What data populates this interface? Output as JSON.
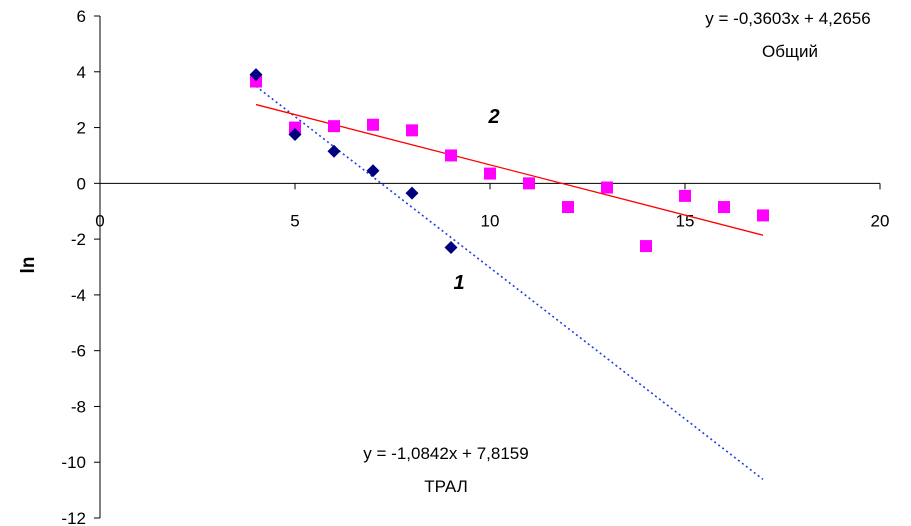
{
  "chart_data": {
    "type": "scatter",
    "title": "",
    "xlabel": "",
    "ylabel": "ln",
    "xlim": [
      0,
      20
    ],
    "ylim": [
      -12,
      6
    ],
    "x_ticks": [
      0,
      5,
      10,
      15,
      20
    ],
    "y_ticks": [
      6,
      4,
      2,
      0,
      -2,
      -4,
      -6,
      -8,
      -10,
      -12
    ],
    "grid": false,
    "series": [
      {
        "name": "ТРАЛ",
        "marker": "diamond",
        "color": "#000080",
        "x": [
          4,
          5,
          6,
          7,
          8,
          9
        ],
        "y": [
          3.9,
          1.75,
          1.15,
          0.45,
          -0.35,
          -2.3
        ],
        "trendline": {
          "slope": -1.0842,
          "intercept": 7.8159,
          "x_range": [
            4,
            17
          ],
          "color": "#1f3fe0",
          "style": "dotted"
        },
        "equation": "y = -1,0842x + 7,8159",
        "label": "ТРАЛ",
        "curve_number": "1"
      },
      {
        "name": "Общий",
        "marker": "square",
        "color": "#ff00ff",
        "x": [
          4,
          5,
          6,
          7,
          8,
          9,
          10,
          11,
          12,
          13,
          14,
          15,
          16,
          17
        ],
        "y": [
          3.65,
          2.0,
          2.05,
          2.1,
          1.9,
          1.0,
          0.35,
          0.0,
          -0.85,
          -0.15,
          -2.25,
          -0.45,
          -0.85,
          -1.15
        ],
        "trendline": {
          "slope": -0.3603,
          "intercept": 4.2656,
          "x_range": [
            4,
            17
          ],
          "color": "#ff0000",
          "style": "solid"
        },
        "equation": "y = -0,3603x + 4,2656",
        "label": "Общий",
        "curve_number": "2"
      }
    ]
  }
}
